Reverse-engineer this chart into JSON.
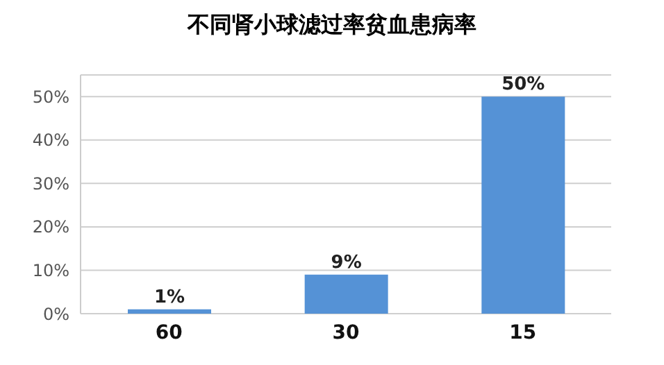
{
  "chart_data": {
    "type": "bar",
    "title": "不同肾小球滤过率贫血患病率",
    "categories": [
      "60",
      "30",
      "15"
    ],
    "values": [
      1,
      9,
      50
    ],
    "value_labels": [
      "1%",
      "9%",
      "50%"
    ],
    "color": "#5592d6",
    "ylim": [
      0,
      55
    ],
    "yticks": [
      {
        "value": 0,
        "label": "0%"
      },
      {
        "value": 10,
        "label": "10%"
      },
      {
        "value": 20,
        "label": "20%"
      },
      {
        "value": 30,
        "label": "30%"
      },
      {
        "value": 40,
        "label": "40%"
      },
      {
        "value": 50,
        "label": "50%"
      }
    ],
    "grid": "y"
  }
}
